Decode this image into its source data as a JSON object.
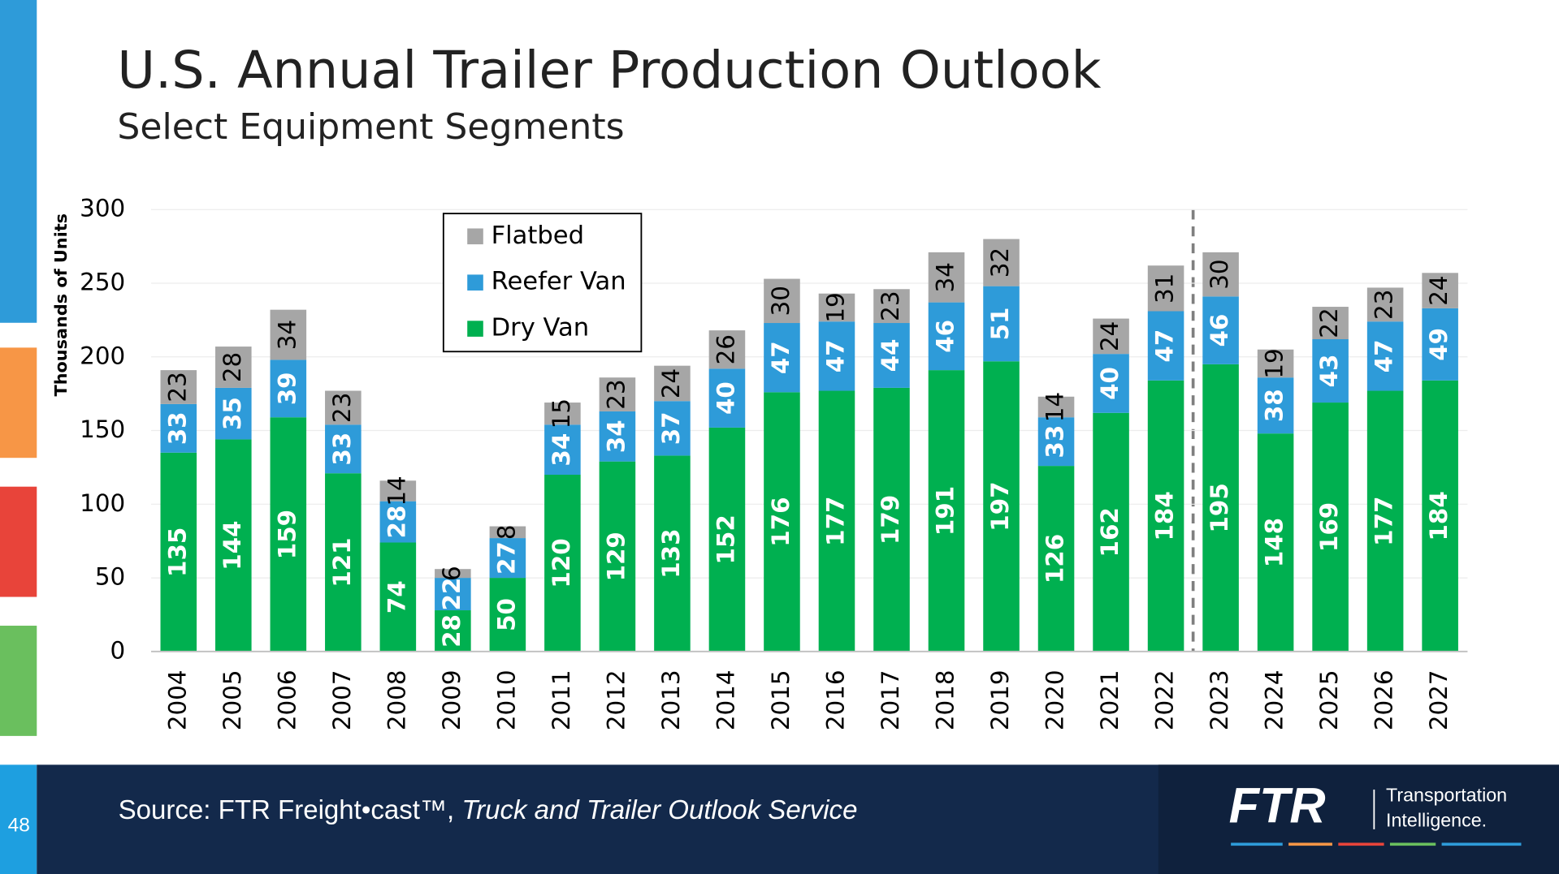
{
  "title": "U.S. Annual Trailer Production Outlook",
  "subtitle": "Select Equipment Segments",
  "page_number": "48",
  "source": {
    "prefix": "Source: FTR Freight•cast™,",
    "italic": "Truck and Trailer Outlook Service"
  },
  "logo": {
    "mark": "FTR",
    "line1": "Transportation",
    "line2": "Intelligence."
  },
  "chart_data": {
    "type": "bar",
    "stacked": true,
    "y_label": "Thousands of Units",
    "categories": [
      "2004",
      "2005",
      "2006",
      "2007",
      "2008",
      "2009",
      "2010",
      "2011",
      "2012",
      "2013",
      "2014",
      "2015",
      "2016",
      "2017",
      "2018",
      "2019",
      "2020",
      "2021",
      "2022",
      "2023",
      "2024",
      "2025",
      "2026",
      "2027"
    ],
    "series": [
      {
        "name": "Dry Van",
        "color": "#00b050",
        "label_color": "#ffffff",
        "values": [
          135,
          144,
          159,
          121,
          74,
          28,
          50,
          120,
          129,
          133,
          152,
          176,
          177,
          179,
          191,
          197,
          126,
          162,
          184,
          195,
          148,
          169,
          177,
          184
        ]
      },
      {
        "name": "Reefer Van",
        "color": "#2e9bd9",
        "label_color": "#ffffff",
        "values": [
          33,
          35,
          39,
          33,
          28,
          22,
          27,
          34,
          34,
          37,
          40,
          47,
          47,
          44,
          46,
          51,
          33,
          40,
          47,
          46,
          38,
          43,
          47,
          49
        ]
      },
      {
        "name": "Flatbed",
        "color": "#a6a6a6",
        "label_color": "#000000",
        "values": [
          23,
          28,
          34,
          23,
          14,
          6,
          8,
          15,
          23,
          24,
          26,
          30,
          19,
          23,
          34,
          32,
          14,
          24,
          31,
          30,
          19,
          22,
          23,
          24
        ]
      }
    ],
    "ylim": [
      0,
      300
    ],
    "yticks": [
      0,
      50,
      100,
      150,
      200,
      250,
      300
    ],
    "grid": true
  }
}
